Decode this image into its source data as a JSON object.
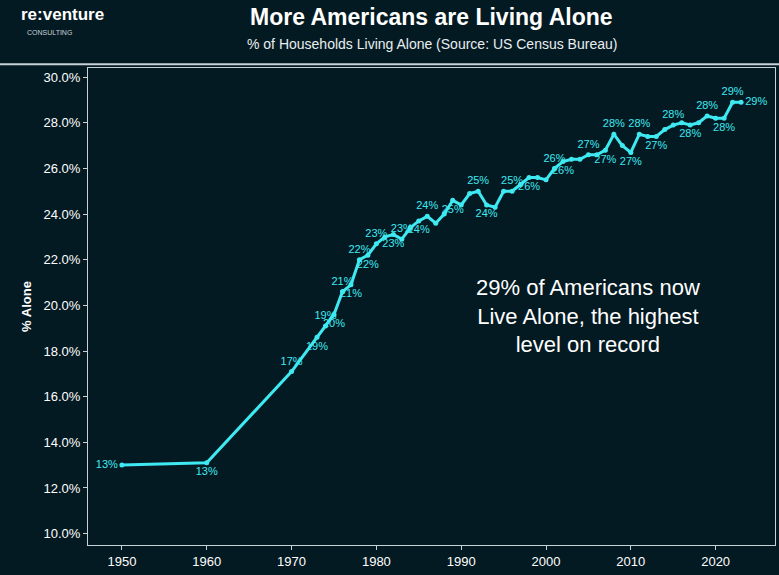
{
  "chart_data": {
    "type": "line",
    "title": "More Americans are Living Alone",
    "subtitle": "% of Households Living Alone (Source: US Census Bureau)",
    "logo": "re:venture",
    "logo_subtitle": "CONSULTING",
    "y_label": "% Alone",
    "annotation_lines": [
      "29% of Americans now",
      "Live Alone, the highest",
      "level on record"
    ],
    "x": [
      1950,
      1960,
      1970,
      1973,
      1974,
      1975,
      1976,
      1977,
      1978,
      1979,
      1980,
      1981,
      1982,
      1983,
      1984,
      1985,
      1986,
      1987,
      1988,
      1989,
      1990,
      1991,
      1992,
      1993,
      1994,
      1995,
      1996,
      1997,
      1998,
      1999,
      2000,
      2001,
      2002,
      2003,
      2004,
      2005,
      2006,
      2007,
      2008,
      2009,
      2010,
      2011,
      2012,
      2013,
      2014,
      2015,
      2016,
      2017,
      2018,
      2019,
      2020,
      2021,
      2022,
      2023
    ],
    "values": [
      13.0,
      13.1,
      17.1,
      18.6,
      19.1,
      19.6,
      20.6,
      20.9,
      22.0,
      22.2,
      22.7,
      23.0,
      23.1,
      22.9,
      23.4,
      23.7,
      23.9,
      23.6,
      24.0,
      24.6,
      24.4,
      24.9,
      25.0,
      24.4,
      24.3,
      25.0,
      25.0,
      25.3,
      25.6,
      25.6,
      25.5,
      26.0,
      26.3,
      26.4,
      26.4,
      26.6,
      26.6,
      26.8,
      27.5,
      27.0,
      26.7,
      27.5,
      27.4,
      27.4,
      27.7,
      27.9,
      28.0,
      27.9,
      28.0,
      28.3,
      28.2,
      28.2,
      28.9,
      28.9
    ],
    "value_labels": [
      "13%",
      "13%",
      "17%",
      "19%",
      "19%",
      "20%",
      "21%",
      "21%",
      "22%",
      "22%",
      "23%",
      null,
      "23%",
      "23%",
      null,
      "24%",
      "24%",
      null,
      null,
      "25%",
      null,
      null,
      "25%",
      "24%",
      null,
      null,
      "25%",
      null,
      "26%",
      null,
      null,
      "26%",
      "26%",
      null,
      null,
      "27%",
      null,
      "27%",
      "28%",
      null,
      "27%",
      "28%",
      null,
      "27%",
      null,
      "28%",
      null,
      "28%",
      null,
      "28%",
      null,
      "28%",
      "29%",
      "29%"
    ],
    "data_labels": true,
    "color": "#3fe9f2",
    "marker": "circle",
    "grid": false,
    "xlim": [
      1946,
      2027
    ],
    "xticks": [
      1950,
      1960,
      1970,
      1980,
      1990,
      2000,
      2010,
      2020
    ],
    "ylim": [
      9.5,
      30.4
    ],
    "yticks": [
      {
        "value": 10,
        "label": "10.0%"
      },
      {
        "value": 12,
        "label": "12.0%"
      },
      {
        "value": 14,
        "label": "14.0%"
      },
      {
        "value": 16,
        "label": "16.0%"
      },
      {
        "value": 18,
        "label": "18.0%"
      },
      {
        "value": 20,
        "label": "20.0%"
      },
      {
        "value": 22,
        "label": "22.0%"
      },
      {
        "value": 24,
        "label": "24.0%"
      },
      {
        "value": 26,
        "label": "26.0%"
      },
      {
        "value": 28,
        "label": "28.0%"
      },
      {
        "value": 30,
        "label": "30.0%"
      }
    ]
  }
}
